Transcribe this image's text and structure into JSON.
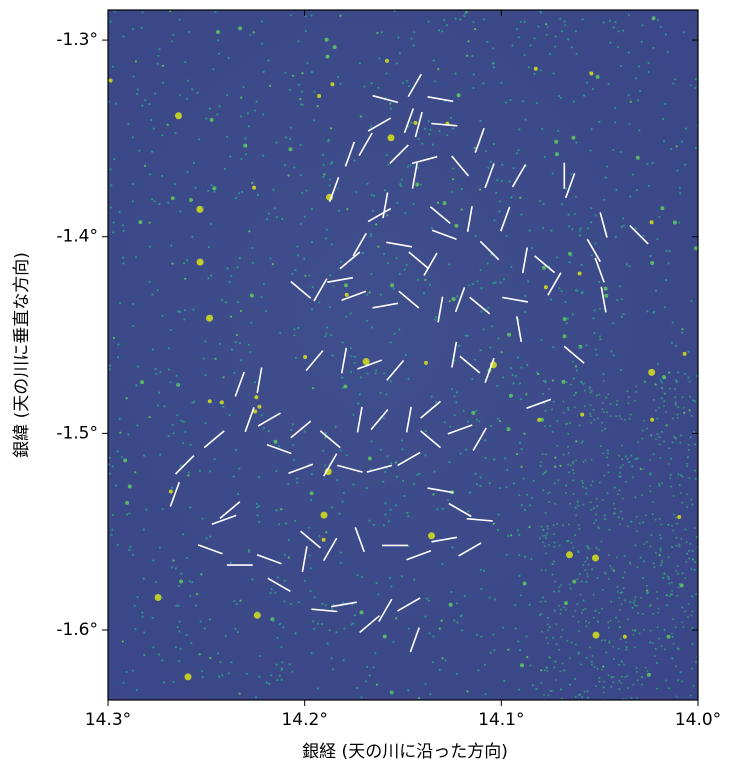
{
  "chart_data": {
    "type": "vector_field",
    "x_label": "銀経 (天の川に沿った方向)",
    "y_label": "銀緯 (天の川に垂直な方向)",
    "xlim": [
      14.3,
      14.0
    ],
    "ylim": [
      -1.6356,
      -1.2847
    ],
    "xticks": [
      {
        "value": 14.3,
        "label": "14.3°"
      },
      {
        "value": 14.2,
        "label": "14.2°"
      },
      {
        "value": 14.1,
        "label": "14.1°"
      },
      {
        "value": 14.0,
        "label": "14.0°"
      }
    ],
    "yticks": [
      {
        "value": -1.3,
        "label": "-1.3°"
      },
      {
        "value": -1.4,
        "label": "-1.4°"
      },
      {
        "value": -1.5,
        "label": "-1.5°"
      },
      {
        "value": -1.6,
        "label": "-1.6°"
      }
    ],
    "color": "#ffffff",
    "x": [
      14.144,
      14.131,
      14.159,
      14.147,
      14.129,
      14.142,
      14.162,
      14.177,
      14.169,
      14.152,
      14.139,
      14.144,
      14.121,
      14.111,
      14.106,
      14.091,
      14.068,
      14.065,
      14.185,
      14.159,
      14.162,
      14.131,
      14.116,
      14.098,
      14.129,
      14.152,
      14.172,
      14.177,
      14.142,
      14.136,
      14.106,
      14.088,
      14.078,
      14.073,
      14.048,
      14.053,
      14.03,
      14.05,
      14.048,
      14.202,
      14.192,
      14.182,
      14.175,
      14.159,
      14.147,
      14.131,
      14.121,
      14.111,
      14.093,
      14.091,
      14.063,
      14.195,
      14.18,
      14.167,
      14.154,
      14.124,
      14.116,
      14.106,
      14.081,
      14.233,
      14.223,
      14.228,
      14.218,
      14.202,
      14.187,
      14.172,
      14.162,
      14.147,
      14.136,
      14.136,
      14.121,
      14.111,
      14.261,
      14.266,
      14.246,
      14.213,
      14.202,
      14.187,
      14.177,
      14.162,
      14.147,
      14.131,
      14.121,
      14.111,
      14.241,
      14.238,
      14.248,
      14.233,
      14.218,
      14.213,
      14.197,
      14.187,
      14.172,
      14.154,
      14.142,
      14.129,
      14.116,
      14.2,
      14.19,
      14.18,
      14.167,
      14.159,
      14.147,
      14.144
    ],
    "y": [
      -1.323,
      -1.33,
      -1.33,
      -1.341,
      -1.343,
      -1.343,
      -1.343,
      -1.358,
      -1.353,
      -1.358,
      -1.361,
      -1.369,
      -1.364,
      -1.351,
      -1.369,
      -1.369,
      -1.369,
      -1.374,
      -1.376,
      -1.384,
      -1.389,
      -1.389,
      -1.391,
      -1.391,
      -1.399,
      -1.404,
      -1.404,
      -1.412,
      -1.412,
      -1.414,
      -1.407,
      -1.412,
      -1.414,
      -1.424,
      -1.394,
      -1.407,
      -1.399,
      -1.417,
      -1.432,
      -1.427,
      -1.427,
      -1.422,
      -1.43,
      -1.435,
      -1.432,
      -1.437,
      -1.432,
      -1.435,
      -1.432,
      -1.447,
      -1.46,
      -1.463,
      -1.463,
      -1.465,
      -1.468,
      -1.46,
      -1.465,
      -1.468,
      -1.485,
      -1.475,
      -1.473,
      -1.493,
      -1.493,
      -1.498,
      -1.503,
      -1.493,
      -1.493,
      -1.493,
      -1.488,
      -1.503,
      -1.498,
      -1.503,
      -1.516,
      -1.531,
      -1.503,
      -1.508,
      -1.518,
      -1.516,
      -1.518,
      -1.518,
      -1.513,
      -1.529,
      -1.539,
      -1.544,
      -1.544,
      -1.539,
      -1.559,
      -1.567,
      -1.564,
      -1.577,
      -1.554,
      -1.559,
      -1.554,
      -1.557,
      -1.562,
      -1.554,
      -1.559,
      -1.564,
      -1.59,
      -1.587,
      -1.597,
      -1.59,
      -1.587,
      -1.605
    ],
    "angle": [
      60,
      -10,
      -15,
      70,
      -5,
      75,
      30,
      70,
      60,
      45,
      15,
      80,
      -50,
      70,
      70,
      60,
      90,
      70,
      70,
      80,
      30,
      -40,
      80,
      70,
      -20,
      -10,
      60,
      40,
      -40,
      60,
      -45,
      80,
      -40,
      60,
      -75,
      -60,
      -45,
      -70,
      -80,
      -40,
      60,
      10,
      20,
      10,
      -40,
      80,
      70,
      -40,
      -10,
      -80,
      -40,
      50,
      80,
      20,
      50,
      80,
      -40,
      70,
      20,
      70,
      80,
      70,
      30,
      40,
      -40,
      80,
      50,
      80,
      40,
      -40,
      20,
      60,
      45,
      70,
      40,
      -20,
      20,
      60,
      -15,
      15,
      30,
      -10,
      -30,
      -5,
      20,
      40,
      -20,
      0,
      -20,
      -30,
      -40,
      60,
      -70,
      0,
      20,
      10,
      30,
      80,
      -5,
      10,
      40,
      60,
      30,
      70
    ]
  }
}
